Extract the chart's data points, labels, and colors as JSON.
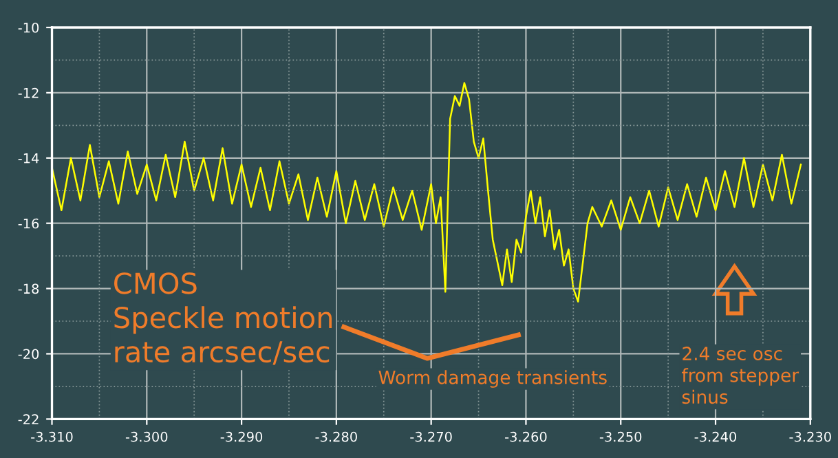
{
  "chart_data": {
    "type": "line",
    "x": [
      -3.31,
      -3.309,
      -3.308,
      -3.307,
      -3.306,
      -3.305,
      -3.304,
      -3.303,
      -3.302,
      -3.301,
      -3.3,
      -3.299,
      -3.298,
      -3.297,
      -3.296,
      -3.295,
      -3.294,
      -3.293,
      -3.292,
      -3.291,
      -3.29,
      -3.289,
      -3.288,
      -3.287,
      -3.286,
      -3.285,
      -3.284,
      -3.283,
      -3.282,
      -3.281,
      -3.28,
      -3.279,
      -3.278,
      -3.277,
      -3.276,
      -3.275,
      -3.274,
      -3.273,
      -3.272,
      -3.271,
      -3.27,
      -3.2695,
      -3.269,
      -3.2685,
      -3.268,
      -3.2675,
      -3.267,
      -3.2665,
      -3.266,
      -3.2655,
      -3.265,
      -3.2645,
      -3.264,
      -3.2635,
      -3.263,
      -3.2625,
      -3.262,
      -3.2615,
      -3.261,
      -3.2605,
      -3.26,
      -3.2595,
      -3.259,
      -3.2585,
      -3.258,
      -3.2575,
      -3.257,
      -3.2565,
      -3.256,
      -3.2555,
      -3.255,
      -3.2545,
      -3.254,
      -3.2535,
      -3.253,
      -3.252,
      -3.251,
      -3.25,
      -3.249,
      -3.248,
      -3.247,
      -3.246,
      -3.245,
      -3.244,
      -3.243,
      -3.242,
      -3.241,
      -3.24,
      -3.239,
      -3.238,
      -3.237,
      -3.236,
      -3.235,
      -3.234,
      -3.233,
      -3.232,
      -3.231
    ],
    "series": [
      {
        "color": "#ffff00",
        "values": [
          -14.3,
          -15.6,
          -14.0,
          -15.3,
          -13.6,
          -15.2,
          -14.1,
          -15.4,
          -13.8,
          -15.1,
          -14.2,
          -15.3,
          -13.9,
          -15.2,
          -13.5,
          -15.0,
          -14.0,
          -15.3,
          -13.7,
          -15.4,
          -14.2,
          -15.5,
          -14.3,
          -15.6,
          -14.1,
          -15.4,
          -14.5,
          -15.9,
          -14.6,
          -15.8,
          -14.4,
          -16.0,
          -14.7,
          -15.9,
          -14.8,
          -16.1,
          -14.9,
          -15.9,
          -15.0,
          -16.2,
          -14.8,
          -16.0,
          -15.2,
          -18.1,
          -12.8,
          -12.1,
          -12.4,
          -11.7,
          -12.2,
          -13.5,
          -14.0,
          -13.4,
          -15.0,
          -16.5,
          -17.2,
          -17.9,
          -16.8,
          -17.8,
          -16.5,
          -16.9,
          -15.8,
          -15.0,
          -16.0,
          -15.2,
          -16.4,
          -15.6,
          -16.8,
          -16.2,
          -17.3,
          -16.8,
          -18.0,
          -18.4,
          -17.2,
          -16.0,
          -15.5,
          -16.1,
          -15.3,
          -16.2,
          -15.2,
          -16.0,
          -15.0,
          -16.1,
          -14.9,
          -15.9,
          -14.8,
          -15.8,
          -14.6,
          -15.6,
          -14.4,
          -15.5,
          -14.0,
          -15.5,
          -14.2,
          -15.3,
          -13.9,
          -15.4,
          -14.2
        ]
      }
    ],
    "xlim": [
      -3.31,
      -3.23
    ],
    "xticks": [
      {
        "value": -3.31,
        "label": "-3.310"
      },
      {
        "value": -3.3,
        "label": "-3.300"
      },
      {
        "value": -3.29,
        "label": "-3.290"
      },
      {
        "value": -3.28,
        "label": "-3.280"
      },
      {
        "value": -3.27,
        "label": "-3.270"
      },
      {
        "value": -3.26,
        "label": "-3.260"
      },
      {
        "value": -3.25,
        "label": "-3.250"
      },
      {
        "value": -3.24,
        "label": "-3.240"
      },
      {
        "value": -3.23,
        "label": "-3.230"
      }
    ],
    "ylim": [
      -22,
      -10
    ],
    "yticks": [
      -22,
      -20,
      -18,
      -16,
      -14,
      -12,
      -10
    ],
    "grid": true,
    "annotations": [
      "CMOS\nSpeckle motion\nrate arcsec/sec",
      "Worm damage transients",
      "2.4 sec osc\nfrom stepper\nsinus"
    ]
  }
}
